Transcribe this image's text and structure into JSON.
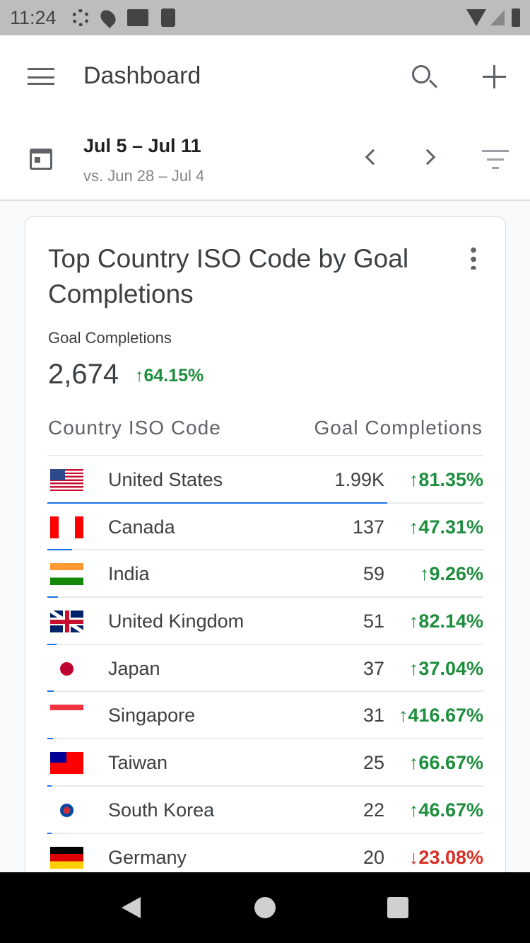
{
  "status_bar": {
    "time": "11:24"
  },
  "app_bar": {
    "title": "Dashboard"
  },
  "date_range": {
    "current": "Jul 5 – Jul 11",
    "comparison": "vs. Jun 28 – Jul 4"
  },
  "card": {
    "title": "Top Country ISO Code by Goal Completions",
    "metric_label": "Goal Completions",
    "metric_value": "2,674",
    "metric_change": "64.15%",
    "columns": [
      "Country ISO Code",
      "Goal Completions"
    ],
    "accent_color": "#1a73e8",
    "rows": [
      {
        "country": "United States",
        "flag": "us",
        "value": "1.99K",
        "change": "81.35%",
        "dir": "up",
        "bar_fraction": 0.78
      },
      {
        "country": "Canada",
        "flag": "ca",
        "value": "137",
        "change": "47.31%",
        "dir": "up",
        "bar_fraction": 0.057
      },
      {
        "country": "India",
        "flag": "in",
        "value": "59",
        "change": "9.26%",
        "dir": "up",
        "bar_fraction": 0.025
      },
      {
        "country": "United Kingdom",
        "flag": "gb",
        "value": "51",
        "change": "82.14%",
        "dir": "up",
        "bar_fraction": 0.021
      },
      {
        "country": "Japan",
        "flag": "jp",
        "value": "37",
        "change": "37.04%",
        "dir": "up",
        "bar_fraction": 0.015
      },
      {
        "country": "Singapore",
        "flag": "sg",
        "value": "31",
        "change": "416.67%",
        "dir": "up",
        "bar_fraction": 0.013
      },
      {
        "country": "Taiwan",
        "flag": "tw",
        "value": "25",
        "change": "66.67%",
        "dir": "up",
        "bar_fraction": 0.01
      },
      {
        "country": "South Korea",
        "flag": "kr",
        "value": "22",
        "change": "46.67%",
        "dir": "up",
        "bar_fraction": 0.009
      },
      {
        "country": "Germany",
        "flag": "de",
        "value": "20",
        "change": "23.08%",
        "dir": "down",
        "bar_fraction": 0.008
      }
    ]
  }
}
